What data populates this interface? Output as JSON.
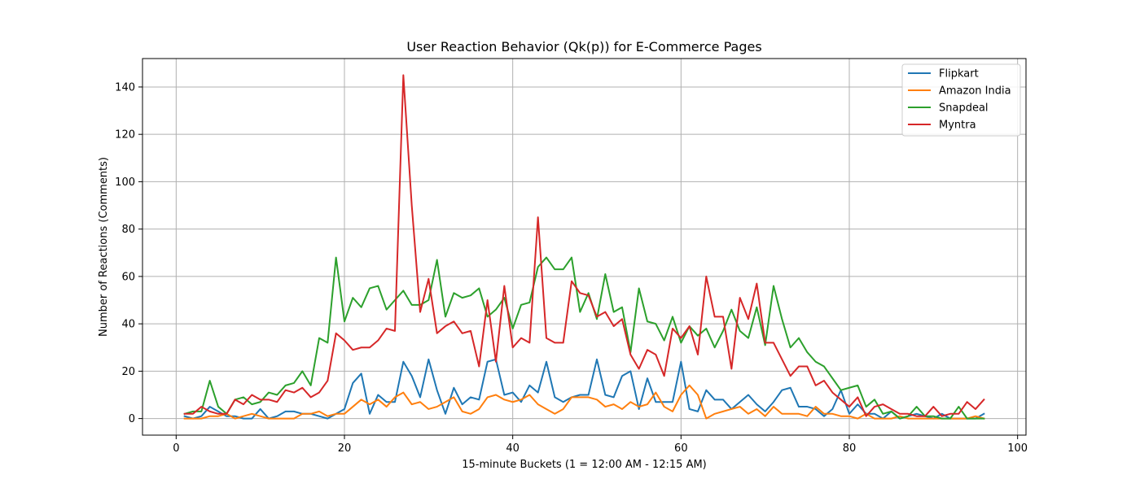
{
  "chart_data": {
    "type": "line",
    "title": "User Reaction Behavior (Qk(p)) for E-Commerce Pages",
    "xlabel": "15-minute Buckets (1 = 12:00 AM - 12:15 AM)",
    "ylabel": "Number of Reactions (Comments)",
    "xlim": [
      -4,
      101
    ],
    "ylim": [
      -7,
      152
    ],
    "xticks": [
      0,
      20,
      40,
      60,
      80,
      100
    ],
    "yticks": [
      0,
      20,
      40,
      60,
      80,
      100,
      120,
      140
    ],
    "grid": true,
    "legend_position": "top-right",
    "x": [
      1,
      2,
      3,
      4,
      5,
      6,
      7,
      8,
      9,
      10,
      11,
      12,
      13,
      14,
      15,
      16,
      17,
      18,
      19,
      20,
      21,
      22,
      23,
      24,
      25,
      26,
      27,
      28,
      29,
      30,
      31,
      32,
      33,
      34,
      35,
      36,
      37,
      38,
      39,
      40,
      41,
      42,
      43,
      44,
      45,
      46,
      47,
      48,
      49,
      50,
      51,
      52,
      53,
      54,
      55,
      56,
      57,
      58,
      59,
      60,
      61,
      62,
      63,
      64,
      65,
      66,
      67,
      68,
      69,
      70,
      71,
      72,
      73,
      74,
      75,
      76,
      77,
      78,
      79,
      80,
      81,
      82,
      83,
      84,
      85,
      86,
      87,
      88,
      89,
      90,
      91,
      92,
      93,
      94,
      95,
      96
    ],
    "series": [
      {
        "name": "Flipkart",
        "color": "#1f77b4",
        "values": [
          1,
          0,
          1,
          5,
          3,
          1,
          1,
          0,
          0,
          4,
          0,
          1,
          3,
          3,
          2,
          2,
          1,
          0,
          2,
          4,
          15,
          19,
          2,
          10,
          7,
          7,
          24,
          18,
          9,
          25,
          12,
          2,
          13,
          6,
          9,
          8,
          24,
          25,
          10,
          11,
          7,
          14,
          11,
          24,
          9,
          7,
          9,
          10,
          10,
          25,
          10,
          9,
          18,
          20,
          4,
          17,
          7,
          7,
          7,
          24,
          4,
          3,
          12,
          8,
          8,
          4,
          7,
          10,
          6,
          3,
          7,
          12,
          13,
          5,
          5,
          4,
          1,
          4,
          12,
          2,
          6,
          2,
          2,
          0,
          3,
          0,
          1,
          2,
          1,
          0,
          2,
          0,
          0,
          0,
          0,
          2
        ]
      },
      {
        "name": "Amazon India",
        "color": "#ff7f0e",
        "values": [
          0,
          0,
          0,
          1,
          1,
          2,
          0,
          1,
          2,
          1,
          0,
          0,
          0,
          0,
          2,
          2,
          3,
          1,
          2,
          2,
          5,
          8,
          6,
          8,
          5,
          9,
          11,
          6,
          7,
          4,
          5,
          7,
          9,
          3,
          2,
          4,
          9,
          10,
          8,
          7,
          8,
          10,
          6,
          4,
          2,
          4,
          9,
          9,
          9,
          8,
          5,
          6,
          4,
          7,
          5,
          6,
          11,
          5,
          3,
          10,
          14,
          10,
          0,
          2,
          3,
          4,
          5,
          2,
          4,
          1,
          5,
          2,
          2,
          2,
          1,
          5,
          2,
          2,
          1,
          1,
          0,
          2,
          0,
          0,
          0,
          1,
          0,
          0,
          0,
          0,
          0,
          0,
          0,
          0,
          1,
          0
        ]
      },
      {
        "name": "Snapdeal",
        "color": "#2ca02c",
        "values": [
          2,
          3,
          3,
          16,
          5,
          2,
          8,
          9,
          6,
          7,
          11,
          10,
          14,
          15,
          20,
          14,
          34,
          32,
          68,
          41,
          51,
          47,
          55,
          56,
          46,
          50,
          54,
          48,
          48,
          50,
          67,
          43,
          53,
          51,
          52,
          55,
          43,
          46,
          51,
          38,
          48,
          49,
          64,
          68,
          63,
          63,
          68,
          45,
          53,
          42,
          61,
          45,
          47,
          28,
          55,
          41,
          40,
          33,
          43,
          32,
          39,
          35,
          38,
          30,
          37,
          46,
          37,
          34,
          47,
          31,
          56,
          42,
          30,
          34,
          28,
          24,
          22,
          17,
          12,
          13,
          14,
          5,
          8,
          2,
          3,
          0,
          1,
          5,
          1,
          1,
          0,
          0,
          5,
          0,
          0,
          0
        ]
      },
      {
        "name": "Myntra",
        "color": "#d62728",
        "values": [
          2,
          2,
          5,
          3,
          2,
          2,
          8,
          6,
          10,
          8,
          8,
          7,
          12,
          11,
          13,
          9,
          11,
          16,
          36,
          33,
          29,
          30,
          30,
          33,
          38,
          37,
          145,
          90,
          45,
          59,
          36,
          39,
          41,
          36,
          37,
          22,
          50,
          24,
          56,
          30,
          34,
          32,
          85,
          34,
          32,
          32,
          58,
          53,
          52,
          43,
          45,
          39,
          42,
          27,
          21,
          29,
          27,
          18,
          38,
          34,
          39,
          27,
          60,
          43,
          43,
          21,
          51,
          42,
          57,
          32,
          32,
          25,
          18,
          22,
          22,
          14,
          16,
          11,
          8,
          5,
          9,
          1,
          5,
          6,
          4,
          2,
          2,
          1,
          1,
          5,
          1,
          2,
          2,
          7,
          4,
          8
        ]
      }
    ]
  }
}
